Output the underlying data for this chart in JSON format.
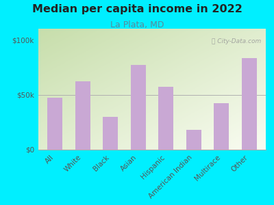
{
  "title": "Median per capita income in 2022",
  "subtitle": "La Plata, MD",
  "categories": [
    "All",
    "White",
    "Black",
    "Asian",
    "Hispanic",
    "American Indian",
    "Multirace",
    "Other"
  ],
  "values": [
    47000,
    62000,
    30000,
    77000,
    57000,
    18000,
    42000,
    83000
  ],
  "bar_color": "#c9a8d4",
  "background_outer": "#00efff",
  "background_inner_topleft": "#c8ddb0",
  "background_inner_white": "#f8f8f0",
  "title_color": "#222222",
  "subtitle_color": "#5a8a9a",
  "tick_label_color": "#555555",
  "yticks": [
    0,
    50000,
    100000
  ],
  "ytick_labels": [
    "$0",
    "$50k",
    "$100k"
  ],
  "ylim": [
    0,
    110000
  ],
  "watermark": "ⓘ City-Data.com",
  "title_fontsize": 11.5,
  "subtitle_fontsize": 9,
  "tick_fontsize": 7.5
}
